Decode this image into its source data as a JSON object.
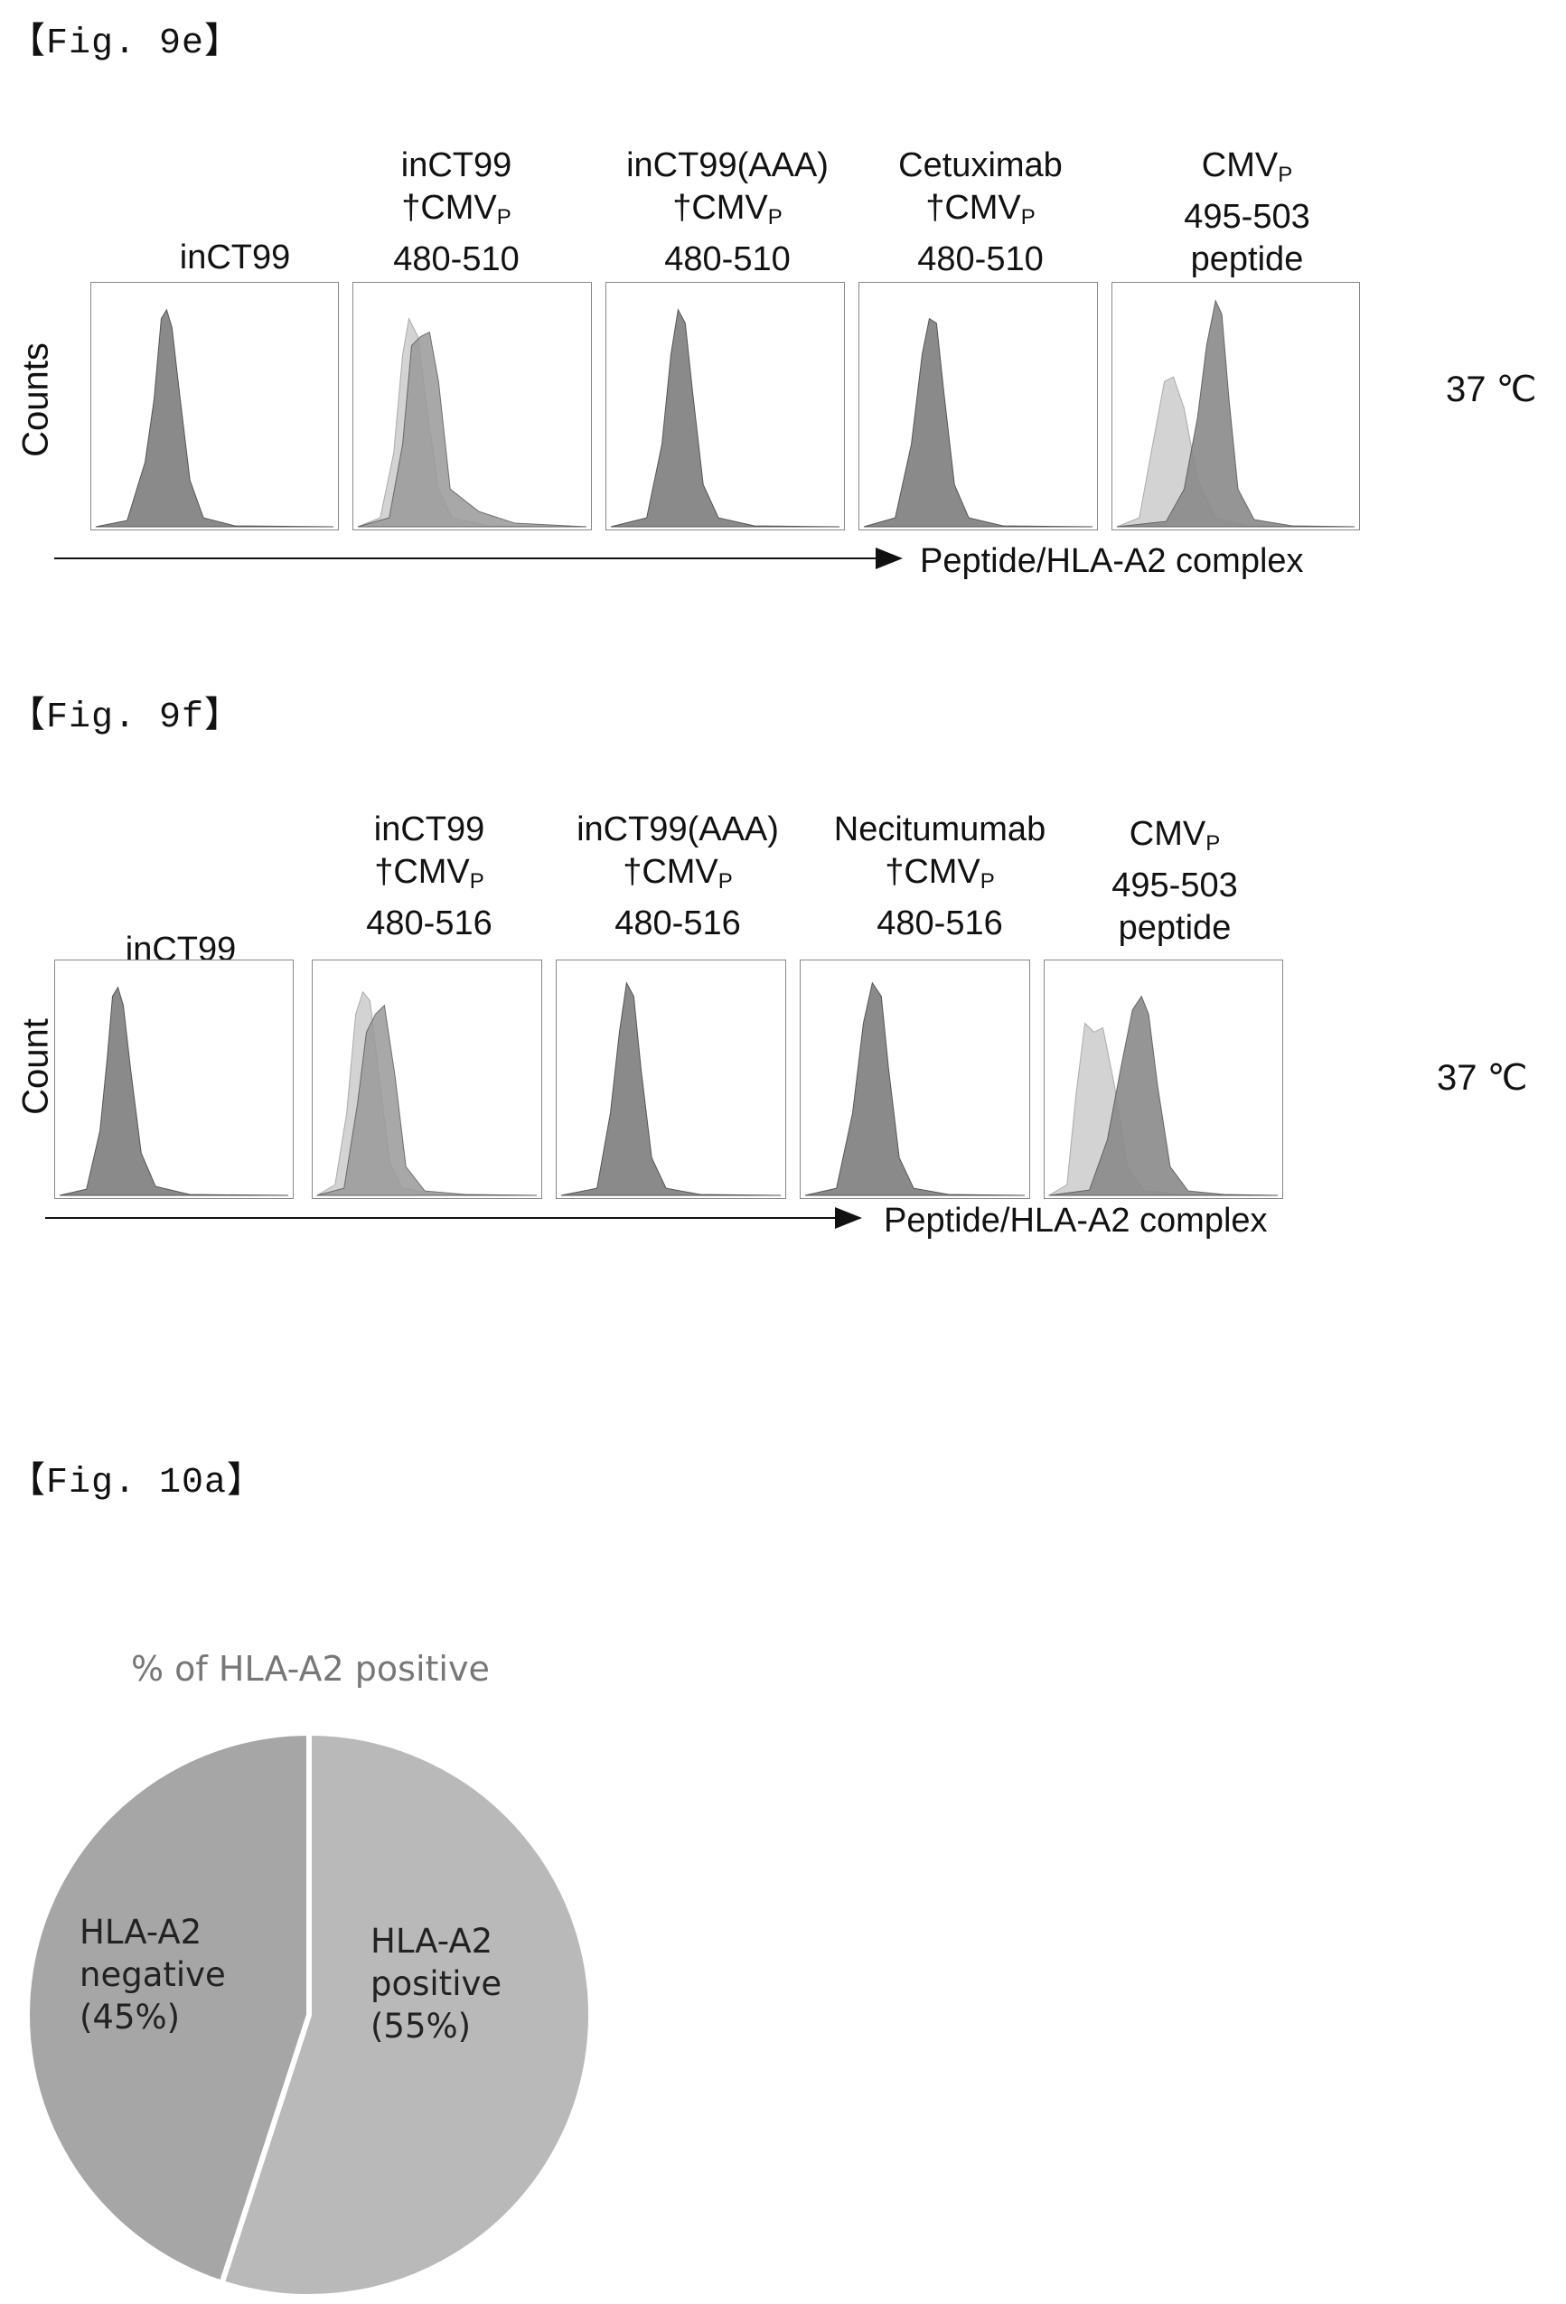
{
  "fig9e": {
    "label": "【Fig. 9e】",
    "y_axis_label": "Counts",
    "x_axis_label": "Peptide/HLA-A2 complex",
    "temperature": "37 ℃",
    "panels": [
      {
        "lines": [
          "inCT99"
        ]
      },
      {
        "lines": [
          "inCT99",
          "†CMV",
          "480-510"
        ]
      },
      {
        "lines": [
          "inCT99(AAA)",
          "†CMV",
          "480-510"
        ]
      },
      {
        "lines": [
          "Cetuximab",
          "†CMV",
          "480-510"
        ]
      },
      {
        "lines": [
          "CMV",
          "495-503",
          "peptide"
        ]
      }
    ],
    "subscript": "P"
  },
  "fig9f": {
    "label": "【Fig. 9f】",
    "y_axis_label": "Count",
    "x_axis_label": "Peptide/HLA-A2 complex",
    "temperature": "37 ℃",
    "panels": [
      {
        "lines": [
          "inCT99"
        ]
      },
      {
        "lines": [
          "inCT99",
          "†CMV",
          "480-516"
        ]
      },
      {
        "lines": [
          "inCT99(AAA)",
          "†CMV",
          "480-516"
        ]
      },
      {
        "lines": [
          "Necitumumab",
          "†CMV",
          "480-516"
        ]
      },
      {
        "lines": [
          "CMV",
          "495-503",
          "peptide"
        ]
      }
    ],
    "subscript": "P"
  },
  "fig10a": {
    "label": "【Fig. 10a】"
  },
  "chart_data": {
    "type": "pie",
    "title": "% of HLA-A2 positive",
    "slices": [
      {
        "label": "HLA-A2 positive (55%)",
        "value": 55,
        "color": "#b9b9b9"
      },
      {
        "label": "HLA-A2 negative (45%)",
        "value": 45,
        "color": "#a6a6a6"
      }
    ],
    "label_lines": {
      "positive": [
        "HLA-A2",
        "positive",
        "(55%)"
      ],
      "negative": [
        "HLA-A2",
        "negative",
        "(45%)"
      ]
    }
  }
}
